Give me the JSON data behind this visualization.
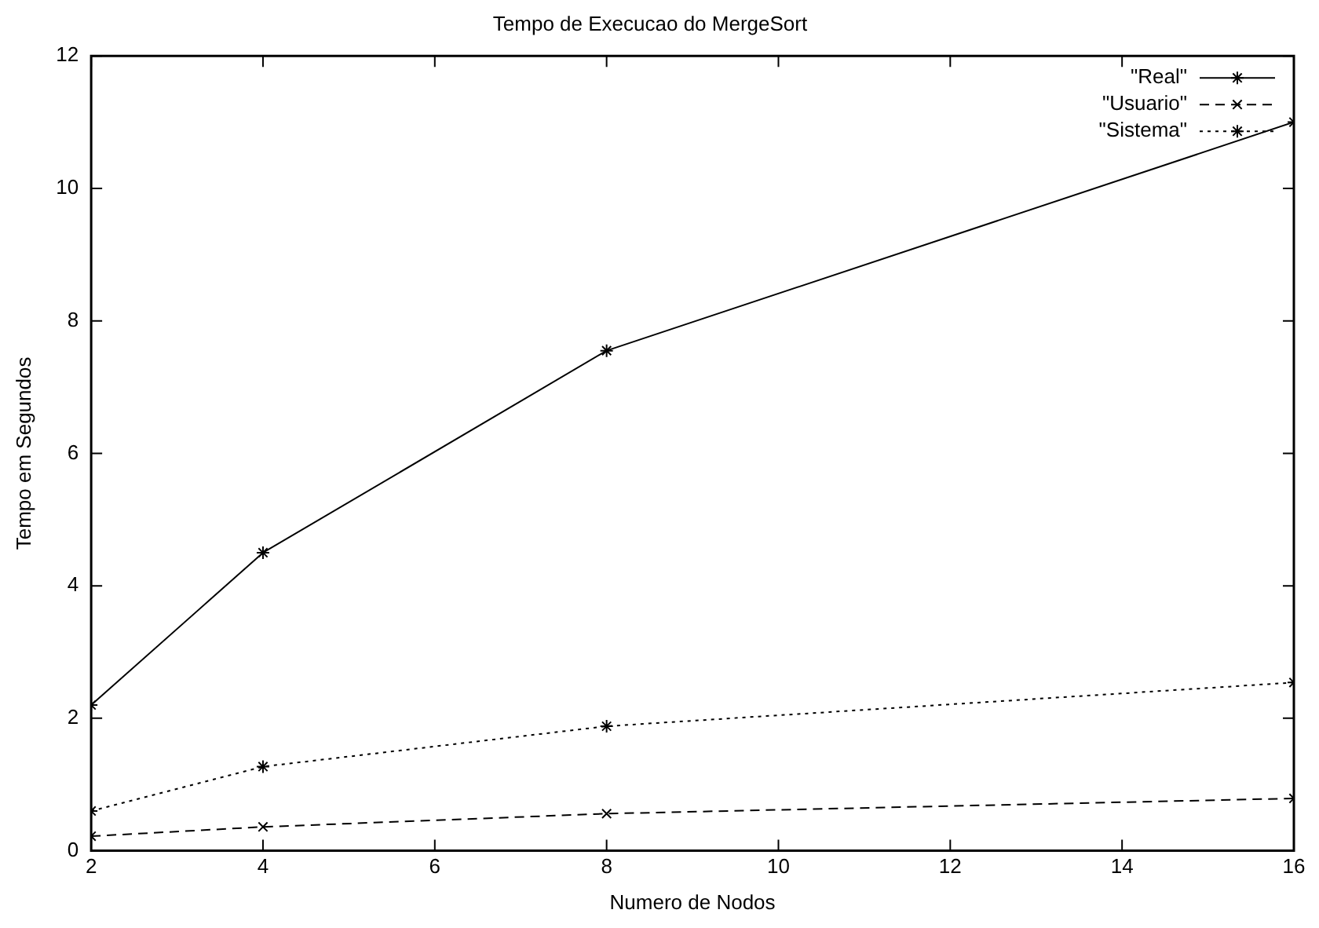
{
  "chart_data": {
    "type": "line",
    "title": "Tempo de Execucao do MergeSort",
    "xlabel": "Numero de Nodos",
    "ylabel": "Tempo em Segundos",
    "x": [
      2,
      4,
      8,
      16
    ],
    "series": [
      {
        "name": "\"Real\"",
        "color": "#000000",
        "values": [
          2.2,
          4.5,
          7.55,
          11.0
        ],
        "marker": "cross",
        "line_style": "solid"
      },
      {
        "name": "\"Usuario\"",
        "color": "#000000",
        "values": [
          0.22,
          0.36,
          0.56,
          0.79
        ],
        "marker": "x",
        "line_style": "dashed"
      },
      {
        "name": "\"Sistema\"",
        "color": "#000000",
        "values": [
          0.6,
          1.27,
          1.88,
          2.54
        ],
        "marker": "cross",
        "line_style": "dotted"
      }
    ],
    "xlim": [
      2,
      16
    ],
    "xticks": [
      2,
      4,
      6,
      8,
      10,
      12,
      14,
      16
    ],
    "ylim": [
      0,
      12
    ],
    "yticks": [
      0,
      2,
      4,
      6,
      8,
      10,
      12
    ],
    "grid": false,
    "legend": "top right"
  }
}
